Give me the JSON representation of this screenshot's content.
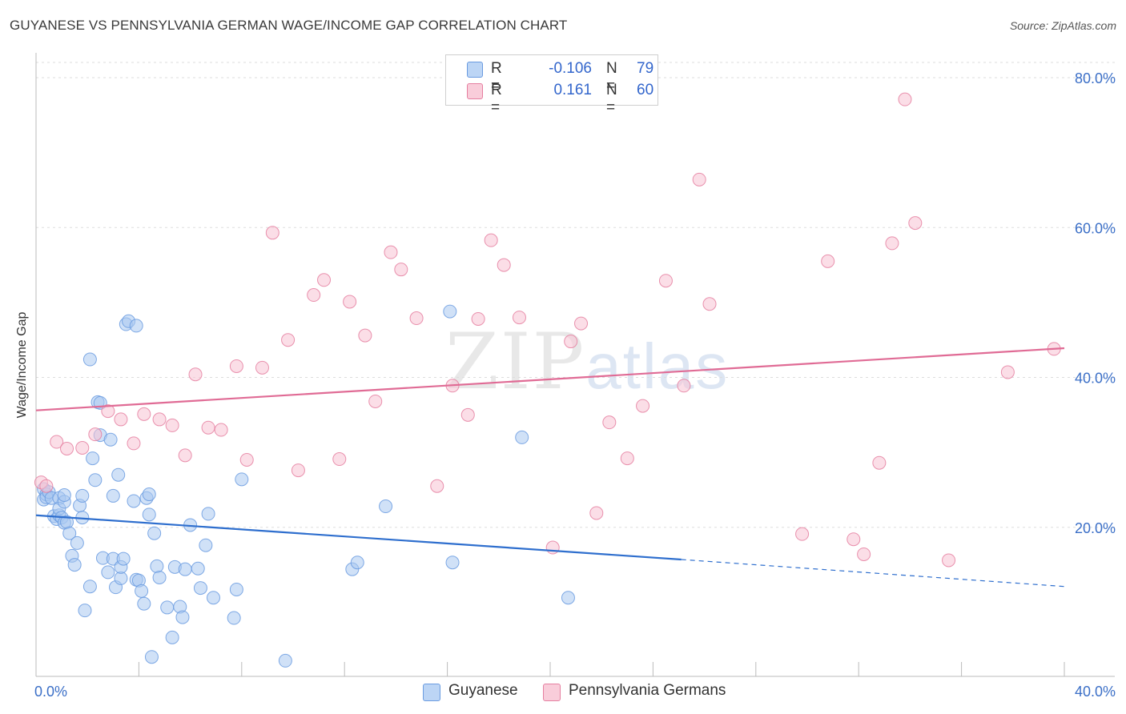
{
  "title": "GUYANESE VS PENNSYLVANIA GERMAN WAGE/INCOME GAP CORRELATION CHART",
  "source": "Source: ZipAtlas.com",
  "watermark": {
    "zip": "ZIP",
    "atlas": "atlas"
  },
  "legend": {
    "rows": [
      {
        "r_label": "R =",
        "r_value": "-0.106",
        "n_label": "N =",
        "n_value": "79",
        "color": "#9ec1ee"
      },
      {
        "r_label": "R =",
        "r_value": "0.161",
        "n_label": "N =",
        "n_value": "60",
        "color": "#f5b3c6"
      }
    ]
  },
  "bottom_legend": [
    {
      "label": "Guyanese",
      "color": "#9ec1ee"
    },
    {
      "label": "Pennsylvania Germans",
      "color": "#f5b3c6"
    }
  ],
  "chart_data": {
    "type": "scatter",
    "title": "GUYANESE VS PENNSYLVANIA GERMAN WAGE/INCOME GAP CORRELATION CHART",
    "xlabel": "",
    "ylabel": "Wage/Income Gap",
    "xlim": [
      0,
      40
    ],
    "ylim": [
      0,
      80
    ],
    "x_tick_labels": [
      "0.0%",
      "40.0%"
    ],
    "y_ticks": [
      20,
      40,
      60,
      80
    ],
    "y_tick_labels": [
      "20.0%",
      "40.0%",
      "60.0%",
      "80.0%"
    ],
    "grid": true,
    "legend_position": "top-center",
    "series": [
      {
        "name": "Guyanese",
        "color": "#6a9be0",
        "fill": "#a9c8f0",
        "r": -0.106,
        "n": 79,
        "trend": {
          "x0": 0,
          "y0": 21.6,
          "x1": 25.1,
          "y1": 15.7,
          "dash_x1": 40,
          "dash_y1": 12.1
        },
        "points": [
          [
            0.3,
            23.7
          ],
          [
            0.3,
            25.1
          ],
          [
            0.4,
            24.4
          ],
          [
            0.4,
            24.0
          ],
          [
            0.5,
            24.7
          ],
          [
            0.6,
            23.9
          ],
          [
            0.7,
            21.5
          ],
          [
            0.8,
            21.1
          ],
          [
            0.9,
            23.9
          ],
          [
            0.9,
            21.6
          ],
          [
            0.9,
            22.5
          ],
          [
            1.0,
            21.3
          ],
          [
            1.1,
            23.4
          ],
          [
            1.1,
            24.3
          ],
          [
            1.1,
            20.6
          ],
          [
            1.2,
            20.7
          ],
          [
            1.3,
            19.2
          ],
          [
            1.4,
            16.2
          ],
          [
            1.5,
            15.0
          ],
          [
            1.6,
            17.9
          ],
          [
            1.7,
            22.9
          ],
          [
            1.8,
            24.2
          ],
          [
            1.8,
            21.3
          ],
          [
            1.9,
            8.9
          ],
          [
            2.1,
            12.1
          ],
          [
            2.1,
            42.4
          ],
          [
            2.2,
            29.2
          ],
          [
            2.3,
            26.3
          ],
          [
            2.4,
            36.7
          ],
          [
            2.5,
            36.6
          ],
          [
            2.5,
            32.3
          ],
          [
            2.6,
            15.9
          ],
          [
            2.8,
            14.0
          ],
          [
            2.9,
            31.7
          ],
          [
            3.0,
            15.8
          ],
          [
            3.0,
            24.2
          ],
          [
            3.1,
            12.0
          ],
          [
            3.2,
            27.0
          ],
          [
            3.3,
            13.2
          ],
          [
            3.3,
            14.7
          ],
          [
            3.4,
            15.8
          ],
          [
            3.5,
            47.1
          ],
          [
            3.6,
            47.5
          ],
          [
            3.8,
            23.5
          ],
          [
            3.9,
            13.0
          ],
          [
            4.0,
            12.9
          ],
          [
            4.1,
            11.5
          ],
          [
            4.2,
            9.8
          ],
          [
            4.3,
            23.9
          ],
          [
            4.4,
            21.7
          ],
          [
            4.6,
            19.2
          ],
          [
            4.7,
            14.8
          ],
          [
            4.8,
            13.3
          ],
          [
            5.1,
            9.3
          ],
          [
            5.3,
            5.3
          ],
          [
            5.4,
            14.7
          ],
          [
            5.6,
            9.4
          ],
          [
            5.7,
            8.0
          ],
          [
            5.8,
            14.4
          ],
          [
            6.0,
            20.3
          ],
          [
            6.3,
            14.5
          ],
          [
            6.4,
            11.9
          ],
          [
            6.6,
            17.6
          ],
          [
            6.7,
            21.8
          ],
          [
            6.9,
            10.6
          ],
          [
            4.5,
            2.7
          ],
          [
            7.7,
            7.9
          ],
          [
            7.8,
            11.7
          ],
          [
            8.0,
            26.4
          ],
          [
            9.7,
            2.2
          ],
          [
            12.3,
            14.4
          ],
          [
            12.5,
            15.3
          ],
          [
            13.6,
            22.8
          ],
          [
            16.1,
            48.8
          ],
          [
            16.2,
            15.3
          ],
          [
            18.9,
            32.0
          ],
          [
            20.7,
            10.6
          ],
          [
            3.9,
            46.9
          ],
          [
            4.4,
            24.4
          ]
        ]
      },
      {
        "name": "Pennsylvania Germans",
        "color": "#e57fa0",
        "fill": "#f8c2d3",
        "r": 0.161,
        "n": 60,
        "trend": {
          "x0": 0,
          "y0": 35.6,
          "x1": 40,
          "y1": 43.9
        },
        "points": [
          [
            0.2,
            26.0
          ],
          [
            0.8,
            31.4
          ],
          [
            1.2,
            30.5
          ],
          [
            1.8,
            30.6
          ],
          [
            2.3,
            32.4
          ],
          [
            2.8,
            35.5
          ],
          [
            3.3,
            34.4
          ],
          [
            3.8,
            31.2
          ],
          [
            4.2,
            35.1
          ],
          [
            4.8,
            34.4
          ],
          [
            5.3,
            33.6
          ],
          [
            5.8,
            29.6
          ],
          [
            6.2,
            40.4
          ],
          [
            6.7,
            33.3
          ],
          [
            7.2,
            33.0
          ],
          [
            7.8,
            41.5
          ],
          [
            8.2,
            29.0
          ],
          [
            8.8,
            41.3
          ],
          [
            9.2,
            59.3
          ],
          [
            9.8,
            45.0
          ],
          [
            10.2,
            27.6
          ],
          [
            10.8,
            51.0
          ],
          [
            11.2,
            53.0
          ],
          [
            11.8,
            29.1
          ],
          [
            12.2,
            50.1
          ],
          [
            12.8,
            45.6
          ],
          [
            13.2,
            36.8
          ],
          [
            13.8,
            56.7
          ],
          [
            14.2,
            54.4
          ],
          [
            14.8,
            47.9
          ],
          [
            15.6,
            25.5
          ],
          [
            16.2,
            38.9
          ],
          [
            16.8,
            35.0
          ],
          [
            17.2,
            47.8
          ],
          [
            17.7,
            58.3
          ],
          [
            18.2,
            55.0
          ],
          [
            18.8,
            48.0
          ],
          [
            20.1,
            17.3
          ],
          [
            20.8,
            44.8
          ],
          [
            21.2,
            47.2
          ],
          [
            21.8,
            21.9
          ],
          [
            22.3,
            34.0
          ],
          [
            23.0,
            29.2
          ],
          [
            23.6,
            36.2
          ],
          [
            24.5,
            52.9
          ],
          [
            25.2,
            38.9
          ],
          [
            25.8,
            66.4
          ],
          [
            26.2,
            49.8
          ],
          [
            29.8,
            19.1
          ],
          [
            30.8,
            55.5
          ],
          [
            31.8,
            18.4
          ],
          [
            32.2,
            16.4
          ],
          [
            32.8,
            28.6
          ],
          [
            33.3,
            57.9
          ],
          [
            33.8,
            77.1
          ],
          [
            34.2,
            60.6
          ],
          [
            35.5,
            15.6
          ],
          [
            37.8,
            40.7
          ],
          [
            39.6,
            43.8
          ],
          [
            0.4,
            25.5
          ]
        ]
      }
    ]
  }
}
